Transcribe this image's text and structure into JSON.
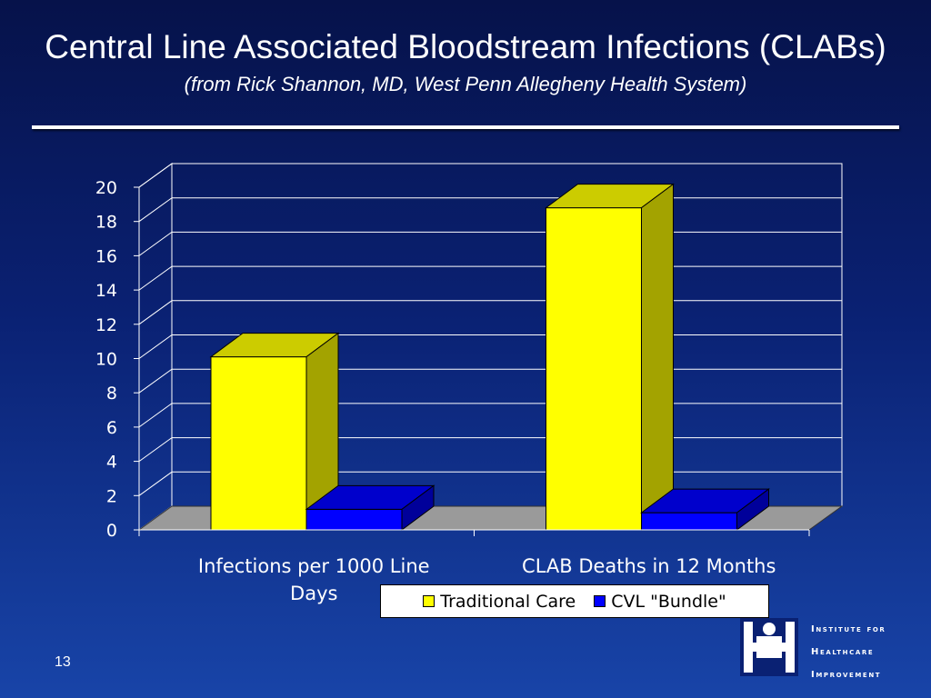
{
  "slide": {
    "title": "Central Line Associated Bloodstream Infections (CLABs)",
    "subtitle": "(from Rick Shannon, MD, West Penn Allegheny Health System)",
    "number": "13"
  },
  "logo": {
    "lines": [
      "Institute for",
      "Healthcare",
      "Improvement"
    ]
  },
  "colors": {
    "traditional": "#ffff00",
    "bundle": "#0000ff",
    "background": "#0a2173"
  },
  "chart_data": {
    "type": "bar",
    "categories": [
      "Infections per 1000 Line Days",
      "CLAB Deaths in 12 Months"
    ],
    "series": [
      {
        "name": "Traditional Care",
        "values": [
          10.1,
          18.8
        ]
      },
      {
        "name": "CVL \"Bundle\"",
        "values": [
          1.2,
          1.0
        ]
      }
    ],
    "yticks": [
      "0",
      "2",
      "4",
      "6",
      "8",
      "10",
      "12",
      "14",
      "16",
      "18",
      "20"
    ],
    "ylim": [
      0,
      20
    ],
    "grid": true,
    "legend": "bottom-right",
    "style": "3d"
  }
}
